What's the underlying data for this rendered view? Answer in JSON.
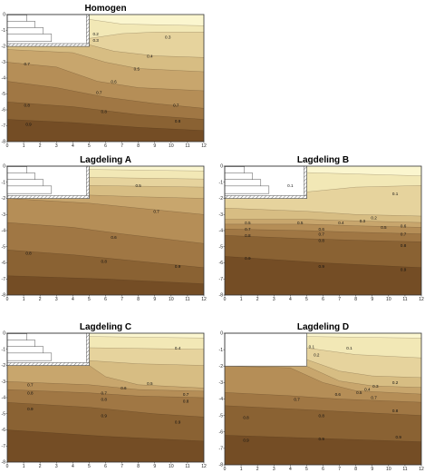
{
  "chart_data": [
    {
      "type": "contour",
      "title": "Homogen",
      "xlim": [
        0,
        12
      ],
      "ylim": [
        -8,
        0
      ],
      "xticks": [
        "0",
        "1",
        "2",
        "3",
        "4",
        "5",
        "6",
        "7",
        "8",
        "9",
        "10",
        "11",
        "12"
      ],
      "yticks": [
        "0",
        "-1",
        "-2",
        "-3",
        "-4",
        "-5",
        "-6",
        "-7",
        "-8"
      ],
      "excavation": {
        "x_max": 5,
        "y_min": -2
      },
      "contour_labels": [
        {
          "text": "0.2",
          "x": 5.4,
          "y": -1.3
        },
        {
          "text": "0.3",
          "x": 5.4,
          "y": -1.7
        },
        {
          "text": "0.3",
          "x": 9.8,
          "y": -1.5
        },
        {
          "text": "0.4",
          "x": 8.7,
          "y": -2.7
        },
        {
          "text": "0.5",
          "x": 7.9,
          "y": -3.5
        },
        {
          "text": "0.6",
          "x": 6.5,
          "y": -4.3
        },
        {
          "text": "0.7",
          "x": 1.2,
          "y": -3.2
        },
        {
          "text": "0.7",
          "x": 5.6,
          "y": -5.0
        },
        {
          "text": "0.7",
          "x": 10.3,
          "y": -5.8
        },
        {
          "text": "0.8",
          "x": 1.2,
          "y": -5.8
        },
        {
          "text": "0.8",
          "x": 5.9,
          "y": -6.2
        },
        {
          "text": "0.8",
          "x": 10.4,
          "y": -6.8
        },
        {
          "text": "0.9",
          "x": 1.3,
          "y": -7.0
        }
      ]
    },
    {
      "type": "contour",
      "title": "Lagdeling A",
      "xlim": [
        0,
        12
      ],
      "ylim": [
        -8,
        0
      ],
      "xticks": [
        "0",
        "1",
        "2",
        "3",
        "4",
        "5",
        "6",
        "7",
        "8",
        "9",
        "10",
        "11",
        "12"
      ],
      "yticks": [
        "0",
        "-1",
        "-2",
        "-3",
        "-4",
        "-5",
        "-6",
        "-7",
        "-8"
      ],
      "excavation": {
        "x_max": 5,
        "y_min": -2
      },
      "contour_labels": [
        {
          "text": "0.5",
          "x": 8.0,
          "y": -1.3
        },
        {
          "text": "0.7",
          "x": 9.1,
          "y": -2.9
        },
        {
          "text": "0.6",
          "x": 6.5,
          "y": -4.5
        },
        {
          "text": "0.8",
          "x": 1.3,
          "y": -5.5
        },
        {
          "text": "0.8",
          "x": 5.9,
          "y": -6.0
        },
        {
          "text": "0.9",
          "x": 10.4,
          "y": -6.3
        }
      ]
    },
    {
      "type": "contour",
      "title": "Lagdeling B",
      "xlim": [
        0,
        12
      ],
      "ylim": [
        -8,
        0
      ],
      "xticks": [
        "0",
        "1",
        "2",
        "3",
        "4",
        "5",
        "6",
        "7",
        "8",
        "9",
        "10",
        "11",
        "12"
      ],
      "yticks": [
        "0",
        "-1",
        "-2",
        "-3",
        "-4",
        "-5",
        "-6",
        "-7",
        "-8"
      ],
      "excavation": {
        "x_max": 5,
        "y_min": -2
      },
      "contour_labels": [
        {
          "text": "0.1",
          "x": 4.0,
          "y": -1.3
        },
        {
          "text": "0.1",
          "x": 10.4,
          "y": -1.8
        },
        {
          "text": "0.2",
          "x": 9.1,
          "y": -3.3
        },
        {
          "text": "0.3",
          "x": 8.4,
          "y": -3.5
        },
        {
          "text": "0.4",
          "x": 7.1,
          "y": -3.6
        },
        {
          "text": "0.5",
          "x": 1.4,
          "y": -3.6
        },
        {
          "text": "0.5",
          "x": 4.6,
          "y": -3.6
        },
        {
          "text": "0.5",
          "x": 9.7,
          "y": -3.9
        },
        {
          "text": "0.6",
          "x": 5.9,
          "y": -4.0
        },
        {
          "text": "0.6",
          "x": 10.9,
          "y": -3.8
        },
        {
          "text": "0.7",
          "x": 1.4,
          "y": -4.0
        },
        {
          "text": "0.7",
          "x": 5.9,
          "y": -4.3
        },
        {
          "text": "0.7",
          "x": 10.9,
          "y": -4.3
        },
        {
          "text": "0.8",
          "x": 1.4,
          "y": -4.4
        },
        {
          "text": "0.8",
          "x": 5.9,
          "y": -4.7
        },
        {
          "text": "0.8",
          "x": 10.9,
          "y": -5.0
        },
        {
          "text": "0.9",
          "x": 1.4,
          "y": -5.8
        },
        {
          "text": "0.9",
          "x": 5.9,
          "y": -6.3
        },
        {
          "text": "0.9",
          "x": 10.9,
          "y": -6.5
        }
      ]
    },
    {
      "type": "contour",
      "title": "Lagdeling C",
      "xlim": [
        0,
        12
      ],
      "ylim": [
        -8,
        0
      ],
      "xticks": [
        "0",
        "1",
        "2",
        "3",
        "4",
        "5",
        "6",
        "7",
        "8",
        "9",
        "10",
        "11",
        "12"
      ],
      "yticks": [
        "0",
        "-1",
        "-2",
        "-3",
        "-4",
        "-5",
        "-6",
        "-7",
        "-8"
      ],
      "excavation": {
        "x_max": 5,
        "y_min": -2
      },
      "contour_labels": [
        {
          "text": "0.4",
          "x": 10.4,
          "y": -1.0
        },
        {
          "text": "0.5",
          "x": 8.7,
          "y": -3.2
        },
        {
          "text": "0.6",
          "x": 7.1,
          "y": -3.5
        },
        {
          "text": "0.7",
          "x": 1.4,
          "y": -3.3
        },
        {
          "text": "0.7",
          "x": 5.9,
          "y": -3.8
        },
        {
          "text": "0.7",
          "x": 10.9,
          "y": -3.9
        },
        {
          "text": "0.8",
          "x": 1.4,
          "y": -3.8
        },
        {
          "text": "0.8",
          "x": 5.9,
          "y": -4.2
        },
        {
          "text": "0.8",
          "x": 10.9,
          "y": -4.3
        },
        {
          "text": "0.9",
          "x": 1.4,
          "y": -4.8
        },
        {
          "text": "0.9",
          "x": 5.9,
          "y": -5.2
        },
        {
          "text": "0.9",
          "x": 10.4,
          "y": -5.6
        }
      ]
    },
    {
      "type": "contour",
      "title": "Lagdeling D",
      "xlim": [
        0,
        12
      ],
      "ylim": [
        -8,
        0
      ],
      "xticks": [
        "0",
        "1",
        "2",
        "3",
        "4",
        "5",
        "6",
        "7",
        "8",
        "9",
        "10",
        "11",
        "12"
      ],
      "yticks": [
        "0",
        "-1",
        "-2",
        "-3",
        "-4",
        "-5",
        "-6",
        "-7",
        "-8"
      ],
      "excavation": {
        "x_max": 5,
        "y_min": -2
      },
      "contour_labels": [
        {
          "text": "0.1",
          "x": 5.3,
          "y": -0.9
        },
        {
          "text": "0.1",
          "x": 7.6,
          "y": -1.0
        },
        {
          "text": "0.2",
          "x": 5.6,
          "y": -1.4
        },
        {
          "text": "0.2",
          "x": 10.4,
          "y": -3.1
        },
        {
          "text": "0.3",
          "x": 9.2,
          "y": -3.3
        },
        {
          "text": "0.4",
          "x": 8.7,
          "y": -3.5
        },
        {
          "text": "0.5",
          "x": 8.2,
          "y": -3.7
        },
        {
          "text": "0.6",
          "x": 6.9,
          "y": -3.8
        },
        {
          "text": "0.7",
          "x": 4.4,
          "y": -4.1
        },
        {
          "text": "0.7",
          "x": 9.1,
          "y": -4.0
        },
        {
          "text": "0.8",
          "x": 10.4,
          "y": -4.8
        },
        {
          "text": "0.8",
          "x": 1.3,
          "y": -5.2
        },
        {
          "text": "0.8",
          "x": 5.9,
          "y": -5.1
        },
        {
          "text": "0.9",
          "x": 1.3,
          "y": -6.6
        },
        {
          "text": "0.9",
          "x": 5.9,
          "y": -6.5
        },
        {
          "text": "0.9",
          "x": 10.6,
          "y": -6.4
        }
      ]
    }
  ]
}
